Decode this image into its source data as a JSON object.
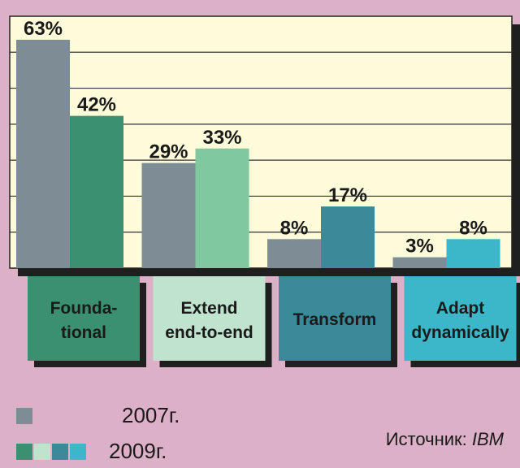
{
  "chart_data": {
    "type": "bar",
    "title": "",
    "xlabel": "",
    "ylabel": "",
    "ylim": [
      0,
      65
    ],
    "grid": true,
    "categories": [
      "Founda-\ntional",
      "Extend\nend-to-end",
      "Transform",
      "Adapt\ndynamically"
    ],
    "series": [
      {
        "name": "2007г.",
        "values": [
          63,
          29,
          8,
          3
        ],
        "color": "#7e8c95"
      },
      {
        "name": "2009г.",
        "values": [
          42,
          33,
          17,
          8
        ],
        "colors": [
          "#3a9070",
          "#80c8a0",
          "#3a8a9a",
          "#3bb7c9"
        ]
      }
    ],
    "category_colors": [
      "#3a9070",
      "#bfe3cd",
      "#3a8a9a",
      "#3bb7c9"
    ],
    "value_suffix": "%"
  },
  "legend": {
    "items": [
      {
        "label": "2007г.",
        "colors": [
          "#7e8c95"
        ]
      },
      {
        "label": "2009г.",
        "colors": [
          "#3a9070",
          "#bfe3cd",
          "#3a8a9a",
          "#3bb7c9"
        ]
      }
    ]
  },
  "source": {
    "prefix": "Источник: ",
    "name": "IBM"
  }
}
